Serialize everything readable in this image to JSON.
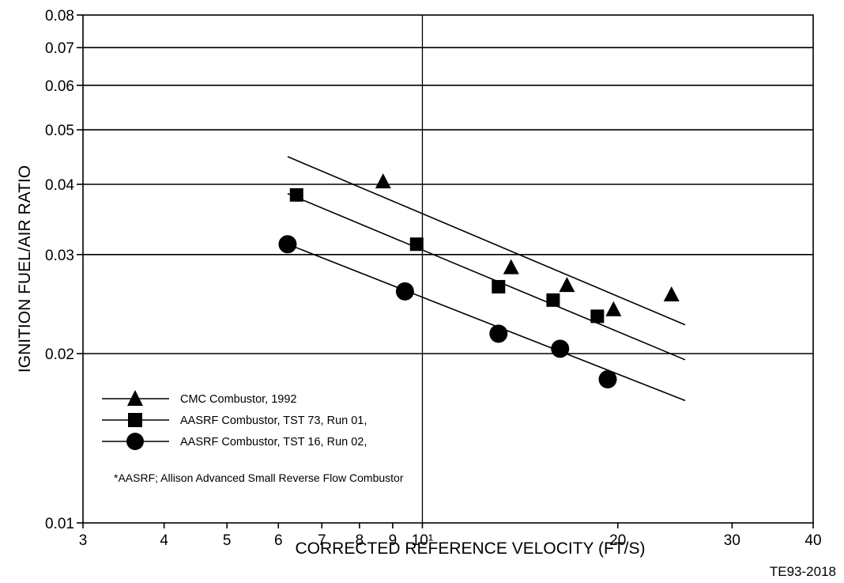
{
  "chart_data": {
    "type": "scatter",
    "title": "",
    "xlabel": "CORRECTED REFERENCE VELOCITY (FT/S)",
    "ylabel": "IGNITION FUEL/AIR RATIO",
    "x_scale": "log",
    "y_scale": "log",
    "xlim": [
      3,
      40
    ],
    "ylim": [
      0.01,
      0.08
    ],
    "x_ticks": [
      {
        "value": 3,
        "label": "3"
      },
      {
        "value": 4,
        "label": "4"
      },
      {
        "value": 5,
        "label": "5"
      },
      {
        "value": 6,
        "label": "6"
      },
      {
        "value": 7,
        "label": "7"
      },
      {
        "value": 8,
        "label": "8"
      },
      {
        "value": 9,
        "label": "9"
      },
      {
        "value": 10,
        "label": "10¹"
      },
      {
        "value": 20,
        "label": "20"
      },
      {
        "value": 30,
        "label": "30"
      },
      {
        "value": 40,
        "label": "40"
      }
    ],
    "y_ticks": [
      {
        "value": 0.01,
        "label": "0.01"
      },
      {
        "value": 0.02,
        "label": "0.02"
      },
      {
        "value": 0.03,
        "label": "0.03"
      },
      {
        "value": 0.04,
        "label": "0.04"
      },
      {
        "value": 0.05,
        "label": "0.05"
      },
      {
        "value": 0.06,
        "label": "0.06"
      },
      {
        "value": 0.07,
        "label": "0.07"
      },
      {
        "value": 0.08,
        "label": "0.08"
      }
    ],
    "grid": {
      "horizontal": true,
      "vertical_at": [
        10
      ]
    },
    "legend_position": "lower-left",
    "series": [
      {
        "name": "CMC Combustor, 1992",
        "marker": "triangle",
        "color": "#000000",
        "points": [
          {
            "x": 8.7,
            "y": 0.0405
          },
          {
            "x": 13.7,
            "y": 0.0285
          },
          {
            "x": 16.7,
            "y": 0.0265
          },
          {
            "x": 19.7,
            "y": 0.024
          },
          {
            "x": 24.2,
            "y": 0.0255
          }
        ],
        "fit_line": {
          "x": [
            6.2,
            25.4
          ],
          "y": [
            0.0448,
            0.0225
          ]
        }
      },
      {
        "name": "AASRF Combustor, TST 73, Run 01,",
        "marker": "square",
        "color": "#000000",
        "points": [
          {
            "x": 6.4,
            "y": 0.0383
          },
          {
            "x": 9.8,
            "y": 0.0313
          },
          {
            "x": 13.1,
            "y": 0.0263
          },
          {
            "x": 15.9,
            "y": 0.0249
          },
          {
            "x": 18.6,
            "y": 0.0233
          }
        ],
        "fit_line": {
          "x": [
            6.2,
            25.4
          ],
          "y": [
            0.0385,
            0.0195
          ]
        }
      },
      {
        "name": "AASRF Combustor, TST 16, Run 02,",
        "marker": "circle",
        "color": "#000000",
        "points": [
          {
            "x": 6.2,
            "y": 0.0313
          },
          {
            "x": 9.4,
            "y": 0.0258
          },
          {
            "x": 13.1,
            "y": 0.0217
          },
          {
            "x": 16.3,
            "y": 0.0204
          },
          {
            "x": 19.3,
            "y": 0.018
          }
        ],
        "fit_line": {
          "x": [
            6.2,
            25.4
          ],
          "y": [
            0.0313,
            0.0165
          ]
        }
      }
    ],
    "annotations": [
      "*AASRF; Allison Advanced Small Reverse Flow Combustor",
      "TE93-2018"
    ]
  }
}
